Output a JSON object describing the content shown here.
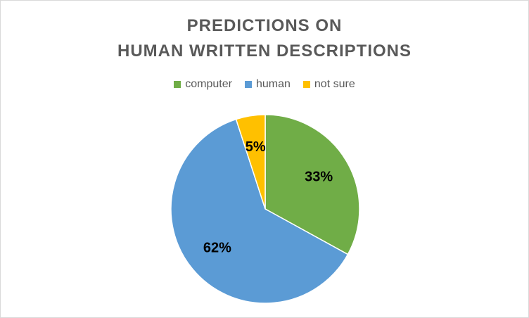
{
  "chart_data": {
    "type": "pie",
    "title": [
      "PREDICTIONS ON",
      "HUMAN WRITTEN DESCRIPTIONS"
    ],
    "legend_position": "top",
    "slices": [
      {
        "label": "computer",
        "value": 33,
        "display": "33%",
        "color": "#70ad47"
      },
      {
        "label": "human",
        "value": 62,
        "display": "62%",
        "color": "#5b9bd5"
      },
      {
        "label": "not sure",
        "value": 5,
        "display": "5%",
        "color": "#ffc000"
      }
    ]
  }
}
